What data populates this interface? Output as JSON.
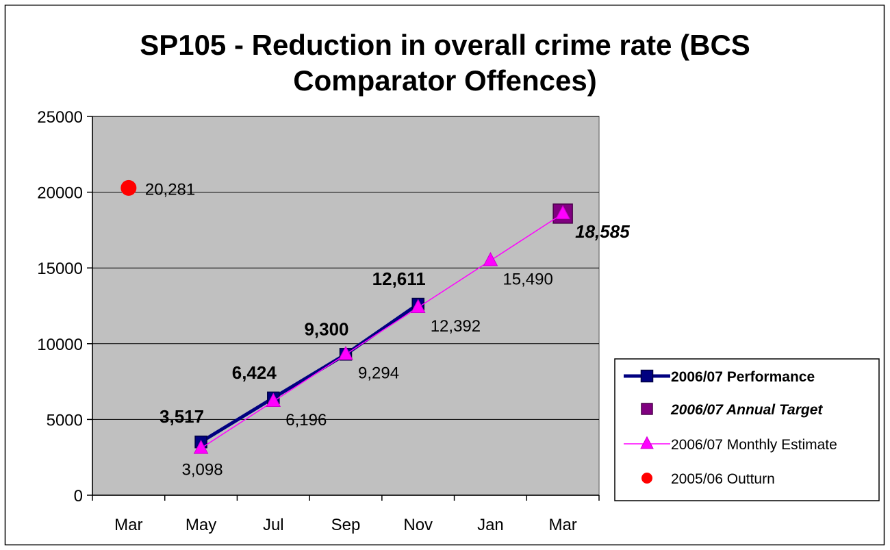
{
  "chart_data": {
    "type": "line",
    "title_lines": [
      "SP105 - Reduction in overall crime rate (BCS",
      "Comparator Offences)"
    ],
    "xlabel": "",
    "ylabel": "",
    "categories": [
      "Mar",
      "May",
      "Jul",
      "Sep",
      "Nov",
      "Jan",
      "Mar"
    ],
    "ylim": [
      0,
      25000
    ],
    "yticks": [
      0,
      5000,
      10000,
      15000,
      20000,
      25000
    ],
    "grid": true,
    "legend_position": "right",
    "series": [
      {
        "name": "2006/07 Performance",
        "marker": "square",
        "color": "#000080",
        "points": [
          {
            "x": "May",
            "y": 3517,
            "label": "3,517"
          },
          {
            "x": "Jul",
            "y": 6424,
            "label": "6,424"
          },
          {
            "x": "Sep",
            "y": 9300,
            "label": "9,300"
          },
          {
            "x": "Nov",
            "y": 12611,
            "label": "12,611"
          }
        ]
      },
      {
        "name": "2006/07 Annual Target",
        "marker": "square",
        "color": "#800080",
        "points": [
          {
            "x": "Mar",
            "y": 18585,
            "label": "18,585"
          }
        ]
      },
      {
        "name": "2006/07 Monthly Estimate",
        "marker": "triangle",
        "color": "#ff00ff",
        "points": [
          {
            "x": "May",
            "y": 3098,
            "label": "3,098"
          },
          {
            "x": "Jul",
            "y": 6196,
            "label": "6,196"
          },
          {
            "x": "Sep",
            "y": 9294,
            "label": "9,294"
          },
          {
            "x": "Nov",
            "y": 12392,
            "label": "12,392"
          },
          {
            "x": "Jan",
            "y": 15490,
            "label": "15,490"
          },
          {
            "x": "Mar",
            "y": 18585,
            "label": ""
          }
        ]
      },
      {
        "name": "2005/06 Outturn",
        "marker": "circle",
        "color": "#ff0000",
        "points": [
          {
            "x": "Mar",
            "y": 20281,
            "label": "20,281"
          }
        ]
      }
    ]
  },
  "colors": {
    "plot_background": "#c0c0c0",
    "grid": "#000000"
  }
}
